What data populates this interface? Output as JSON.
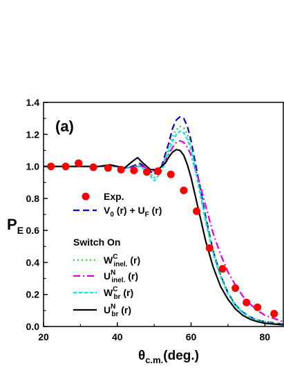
{
  "chart_data": {
    "type": "line",
    "panel_label": "(a)",
    "ylabel": "P",
    "ylabel_sub": "E",
    "xlabel_theta": "θ",
    "xlabel_sub": "c.m.",
    "xlabel_unit": "(deg.)",
    "xlim": [
      20,
      85
    ],
    "ylim": [
      0.0,
      1.4
    ],
    "xticks": [
      20,
      40,
      60,
      80
    ],
    "xtick_labels": [
      "20",
      "40",
      "60",
      "80"
    ],
    "yticks": [
      0.0,
      0.2,
      0.4,
      0.6,
      0.8,
      1.0,
      1.2,
      1.4
    ],
    "ytick_labels": [
      "0.0",
      "0.2",
      "0.4",
      "0.6",
      "0.8",
      "1.0",
      "1.2",
      "1.4"
    ],
    "legend_header": "Switch On",
    "experiment": {
      "name": "Exp.",
      "color": "#ff0000",
      "x": [
        22,
        26,
        29.5,
        33.5,
        37.5,
        41,
        44.5,
        48,
        51,
        54.5,
        58,
        61.5,
        65,
        68.5,
        72,
        75,
        78,
        82.5
      ],
      "y": [
        1.0,
        1.0,
        1.02,
        0.995,
        0.99,
        0.98,
        0.975,
        0.965,
        0.97,
        0.95,
        0.85,
        0.72,
        0.49,
        0.36,
        0.24,
        0.15,
        0.12,
        0.08
      ],
      "err": [
        0.01,
        0.01,
        0.01,
        0.01,
        0.01,
        0.01,
        0.01,
        0.01,
        0.01,
        0.01,
        0.015,
        0.015,
        0.02,
        0.02,
        0.02,
        0.02,
        0.02,
        0.02
      ]
    },
    "series": [
      {
        "key": "base",
        "label_main": "V",
        "label_sub1": "0",
        "label_mid": " (r) + U",
        "label_sub2": "F",
        "label_end": " (r)",
        "color": "#0000cc",
        "dash": "9,5",
        "x": [
          20,
          30,
          35,
          38,
          40,
          42,
          44,
          46,
          48,
          50,
          52,
          54,
          55,
          56,
          57,
          58,
          59,
          60,
          62,
          64,
          66,
          68,
          70,
          72,
          74,
          76,
          78,
          80,
          85
        ],
        "y": [
          1.0,
          1.0,
          1.0,
          1.005,
          1.0,
          0.99,
          1.0,
          1.02,
          0.99,
          0.95,
          1.0,
          1.15,
          1.24,
          1.29,
          1.31,
          1.3,
          1.25,
          1.16,
          0.92,
          0.68,
          0.47,
          0.32,
          0.21,
          0.135,
          0.09,
          0.06,
          0.04,
          0.03,
          0.015
        ]
      },
      {
        "key": "wc_inel",
        "label_main": "W",
        "label_sup": "C",
        "label_sub": "inel.",
        "label_end": " (r)",
        "color": "#22dd22",
        "dash": "2,4",
        "x": [
          20,
          30,
          35,
          38,
          40,
          42,
          44,
          46,
          48,
          50,
          52,
          54,
          55,
          56,
          57,
          58,
          59,
          60,
          62,
          64,
          66,
          68,
          70,
          72,
          74,
          76,
          78,
          80,
          85
        ],
        "y": [
          1.0,
          1.0,
          1.0,
          1.0,
          1.0,
          0.99,
          0.995,
          1.01,
          0.98,
          0.93,
          0.99,
          1.12,
          1.19,
          1.23,
          1.25,
          1.24,
          1.2,
          1.12,
          0.9,
          0.67,
          0.47,
          0.32,
          0.21,
          0.14,
          0.09,
          0.06,
          0.04,
          0.03,
          0.015
        ]
      },
      {
        "key": "un_inel",
        "label_main": "U",
        "label_sup": "N",
        "label_sub": "inel.",
        "label_end": " (r)",
        "color": "#dd00dd",
        "dash": "10,4,2,4",
        "x": [
          20,
          30,
          35,
          38,
          40,
          42,
          44,
          46,
          48,
          50,
          52,
          54,
          55,
          56,
          57,
          58,
          59,
          60,
          62,
          64,
          66,
          68,
          70,
          72,
          74,
          76,
          78,
          80,
          85
        ],
        "y": [
          1.0,
          1.0,
          1.0,
          1.0,
          1.0,
          0.99,
          0.995,
          1.005,
          0.99,
          0.97,
          1.0,
          1.08,
          1.12,
          1.15,
          1.16,
          1.15,
          1.12,
          1.07,
          0.92,
          0.75,
          0.58,
          0.45,
          0.34,
          0.26,
          0.19,
          0.14,
          0.1,
          0.07,
          0.03
        ]
      },
      {
        "key": "wc_br",
        "label_main": "W",
        "label_sup": "C",
        "label_sub": "br",
        "label_end": " (r)",
        "color": "#00e5e5",
        "dash": "5,3",
        "x": [
          20,
          30,
          35,
          38,
          40,
          42,
          44,
          46,
          48,
          50,
          52,
          54,
          55,
          56,
          57,
          58,
          59,
          60,
          62,
          64,
          66,
          68,
          70,
          72,
          74,
          76,
          78,
          80,
          85
        ],
        "y": [
          1.0,
          1.0,
          1.0,
          1.0,
          1.0,
          0.99,
          0.99,
          1.0,
          0.97,
          0.91,
          0.97,
          1.1,
          1.16,
          1.2,
          1.22,
          1.21,
          1.17,
          1.1,
          0.88,
          0.65,
          0.45,
          0.31,
          0.2,
          0.13,
          0.085,
          0.055,
          0.035,
          0.025,
          0.012
        ]
      },
      {
        "key": "un_br",
        "label_main": "U",
        "label_sup": "N",
        "label_sub": "br",
        "label_end": " (r)",
        "color": "#000000",
        "dash": "",
        "x": [
          20,
          30,
          35,
          38,
          40,
          42,
          44,
          45.5,
          47,
          49,
          51,
          53,
          54,
          55,
          56,
          57,
          58,
          59,
          60,
          62,
          64,
          66,
          68,
          70,
          72,
          74,
          76,
          78,
          80,
          85
        ],
        "y": [
          1.0,
          1.0,
          1.0,
          1.01,
          1.0,
          0.99,
          1.03,
          1.055,
          1.02,
          0.98,
          0.98,
          1.02,
          1.06,
          1.09,
          1.105,
          1.1,
          1.07,
          1.01,
          0.93,
          0.73,
          0.53,
          0.37,
          0.25,
          0.17,
          0.11,
          0.07,
          0.045,
          0.03,
          0.02,
          0.01
        ]
      }
    ]
  }
}
